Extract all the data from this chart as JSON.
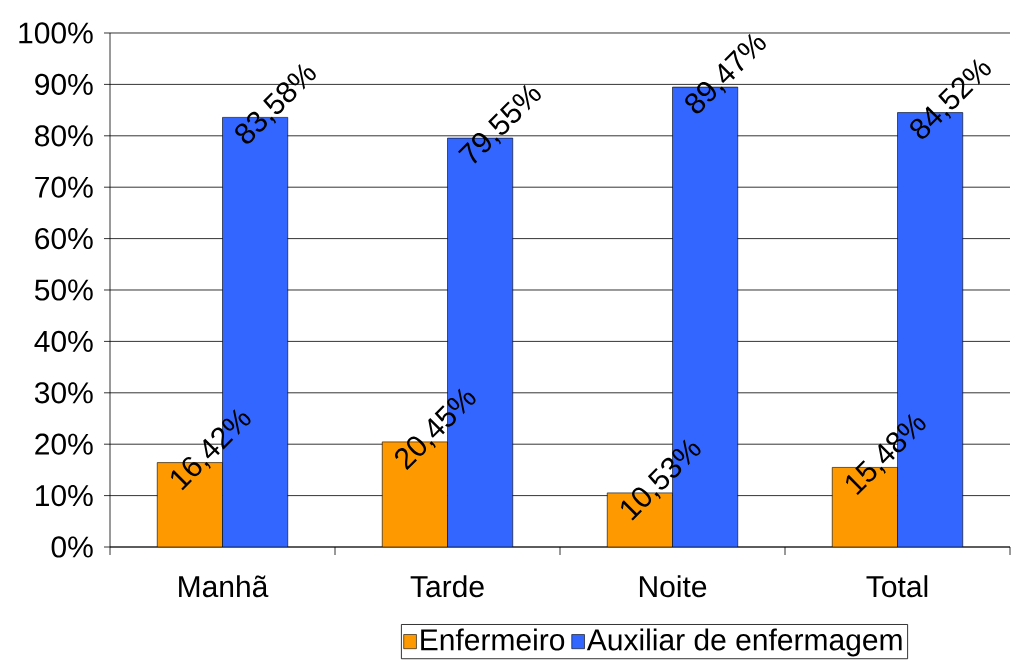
{
  "chart_data": {
    "type": "bar",
    "categories": [
      "Manhã",
      "Tarde",
      "Noite",
      "Total"
    ],
    "series": [
      {
        "name": "Enfermeiro",
        "color": "#ff9900",
        "values": [
          16.42,
          20.45,
          10.53,
          15.48
        ],
        "value_labels": [
          "16,42%",
          "20,45%",
          "10,53%",
          "15,48%"
        ]
      },
      {
        "name": "Auxiliar de enfermagem",
        "color": "#3366ff",
        "values": [
          83.58,
          79.55,
          89.47,
          84.52
        ],
        "value_labels": [
          "83,58%",
          "79,55%",
          "89,47%",
          "84,52%"
        ]
      }
    ],
    "ylim": [
      0,
      100
    ],
    "yticks": [
      {
        "value": 0,
        "label": "0%"
      },
      {
        "value": 10,
        "label": "10%"
      },
      {
        "value": 20,
        "label": "20%"
      },
      {
        "value": 30,
        "label": "30%"
      },
      {
        "value": 40,
        "label": "40%"
      },
      {
        "value": 50,
        "label": "50%"
      },
      {
        "value": 60,
        "label": "60%"
      },
      {
        "value": 70,
        "label": "70%"
      },
      {
        "value": 80,
        "label": "80%"
      },
      {
        "value": 90,
        "label": "90%"
      },
      {
        "value": 100,
        "label": "100%"
      }
    ],
    "grid": "y",
    "legend": "bottom"
  }
}
